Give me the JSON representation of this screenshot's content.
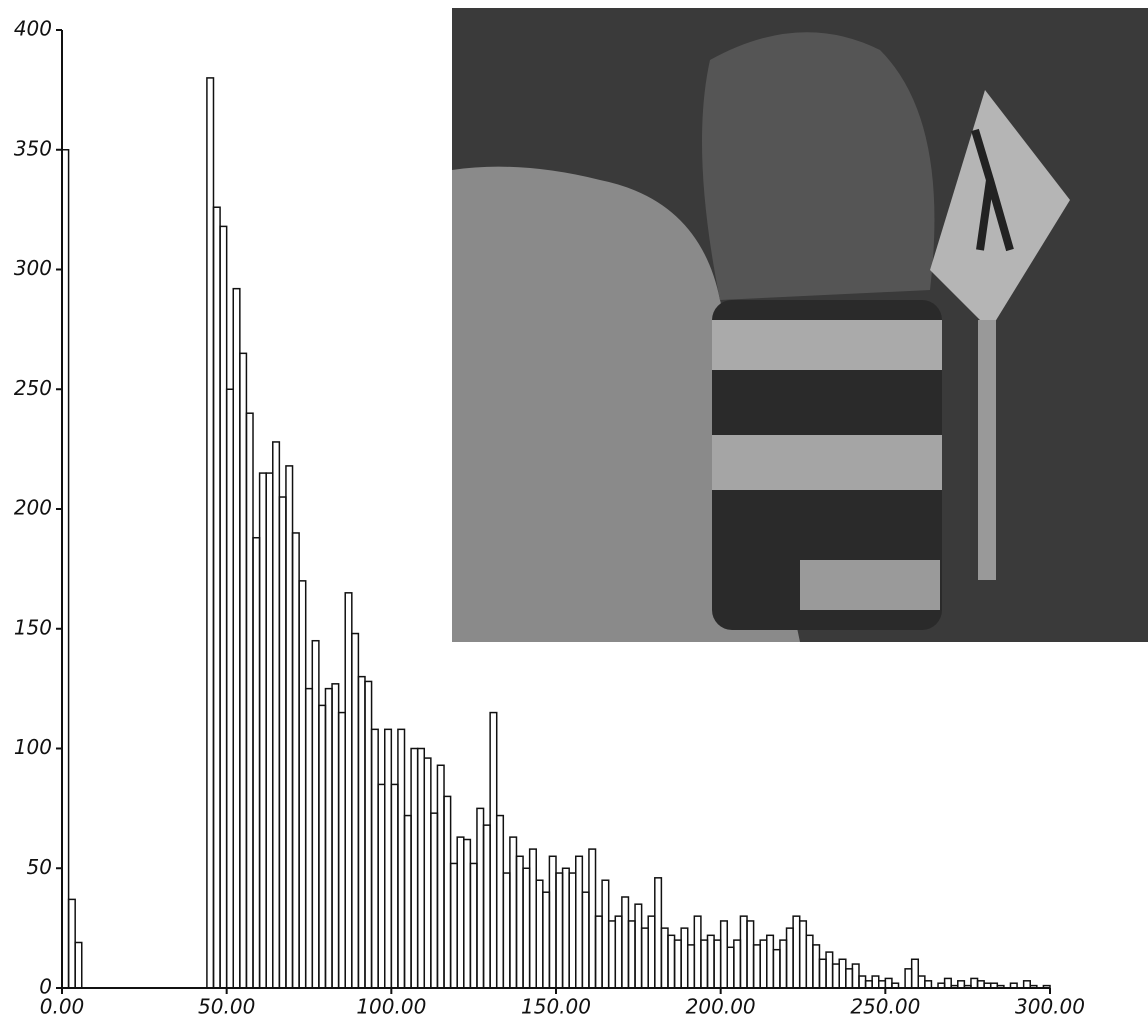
{
  "chart_data": {
    "type": "histogram",
    "bins": [
      0,
      2,
      4,
      6,
      8,
      10,
      12,
      14,
      16,
      18,
      20,
      22,
      24,
      26,
      28,
      30,
      32,
      34,
      36,
      38,
      40,
      42,
      44,
      46,
      48,
      50,
      52,
      54,
      56,
      58,
      60,
      62,
      64,
      66,
      68,
      70,
      72,
      74,
      76,
      78,
      80,
      82,
      84,
      86,
      88,
      90,
      92,
      94,
      96,
      98,
      100,
      102,
      104,
      106,
      108,
      110,
      112,
      114,
      116,
      118,
      120,
      122,
      124,
      126,
      128,
      130,
      132,
      134,
      136,
      138,
      140,
      142,
      144,
      146,
      148,
      150,
      152,
      154,
      156,
      158,
      160,
      162,
      164,
      166,
      168,
      170,
      172,
      174,
      176,
      178,
      180,
      182,
      184,
      186,
      188,
      190,
      192,
      194,
      196,
      198,
      200,
      202,
      204,
      206,
      208,
      210,
      212,
      214,
      216,
      218,
      220,
      222,
      224,
      226,
      228,
      230,
      232,
      234,
      236,
      238,
      240,
      242,
      244,
      246,
      248,
      250,
      252,
      254,
      256,
      258,
      260,
      262,
      264,
      266,
      268,
      270,
      272,
      274,
      276,
      278,
      280,
      282,
      284,
      286,
      288,
      290,
      292,
      294,
      296,
      298,
      300
    ],
    "values": [
      350,
      37,
      19,
      0,
      0,
      0,
      0,
      0,
      0,
      0,
      0,
      0,
      0,
      0,
      0,
      0,
      0,
      0,
      0,
      0,
      0,
      0,
      380,
      326,
      318,
      250,
      292,
      265,
      240,
      188,
      215,
      215,
      228,
      205,
      218,
      190,
      170,
      125,
      145,
      118,
      125,
      127,
      115,
      165,
      148,
      130,
      128,
      108,
      85,
      108,
      85,
      108,
      72,
      100,
      100,
      96,
      73,
      93,
      80,
      52,
      63,
      62,
      52,
      75,
      68,
      115,
      72,
      48,
      63,
      55,
      50,
      58,
      45,
      40,
      55,
      48,
      50,
      48,
      55,
      40,
      58,
      30,
      45,
      28,
      30,
      38,
      28,
      35,
      25,
      30,
      46,
      25,
      22,
      20,
      25,
      18,
      30,
      20,
      22,
      20,
      28,
      17,
      20,
      30,
      28,
      18,
      20,
      22,
      16,
      20,
      25,
      30,
      28,
      22,
      18,
      12,
      15,
      10,
      12,
      8,
      10,
      5,
      3,
      5,
      3,
      4,
      2,
      0,
      8,
      12,
      5,
      3,
      0,
      2,
      4,
      1,
      3,
      1,
      4,
      3,
      2,
      2,
      1,
      0,
      2,
      0,
      3,
      1,
      0,
      1
    ],
    "color": "#111111",
    "xlim": [
      0,
      300
    ],
    "xticks": [
      {
        "value": 0,
        "label": "0.00"
      },
      {
        "value": 50,
        "label": "50.00"
      },
      {
        "value": 100,
        "label": "100.00"
      },
      {
        "value": 150,
        "label": "150.00"
      },
      {
        "value": 200,
        "label": "200.00"
      },
      {
        "value": 250,
        "label": "250.00"
      },
      {
        "value": 300,
        "label": "300.00"
      }
    ],
    "ylim": [
      0,
      400
    ],
    "yticks": [
      0,
      50,
      100,
      150,
      200,
      250,
      300,
      350,
      400
    ]
  }
}
